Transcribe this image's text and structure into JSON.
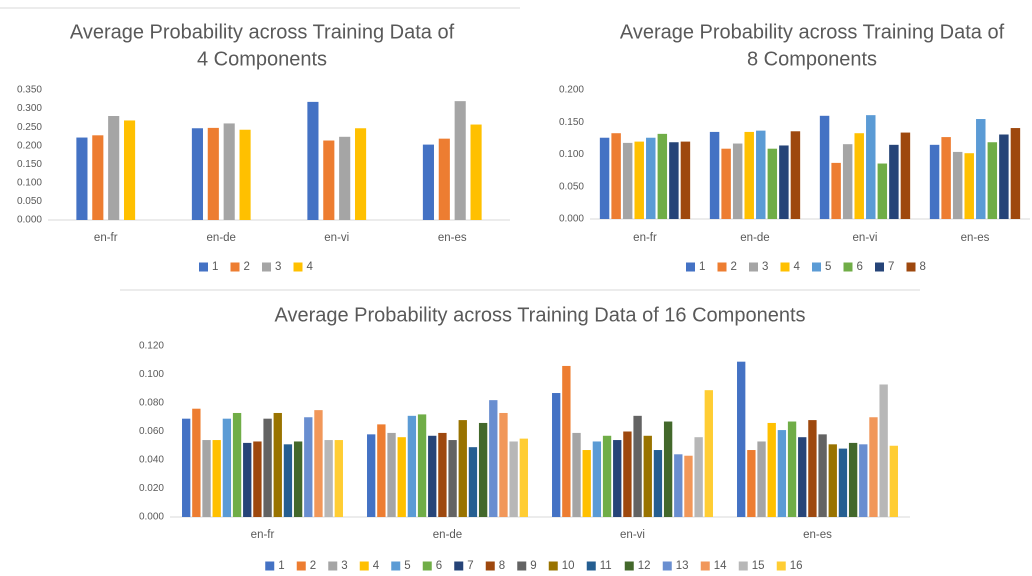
{
  "chart_data": [
    {
      "type": "bar",
      "title": [
        "Average Probability across Training Data of",
        "4 Components"
      ],
      "categories": [
        "en-fr",
        "en-de",
        "en-vi",
        "en-es"
      ],
      "ylim": [
        0,
        0.35
      ],
      "yticks": [
        {
          "value": 0,
          "label": "0.000"
        },
        {
          "value": 0.05,
          "label": "0.050"
        },
        {
          "value": 0.1,
          "label": "0.100"
        },
        {
          "value": 0.15,
          "label": "0.150"
        },
        {
          "value": 0.2,
          "label": "0.200"
        },
        {
          "value": 0.25,
          "label": "0.250"
        },
        {
          "value": 0.3,
          "label": "0.300"
        },
        {
          "value": 0.35,
          "label": "0.350"
        }
      ],
      "legend": "bottom",
      "series": [
        {
          "name": "1",
          "color": "#4472c4",
          "values": [
            0.222,
            0.247,
            0.318,
            0.203
          ]
        },
        {
          "name": "2",
          "color": "#ed7d31",
          "values": [
            0.228,
            0.248,
            0.214,
            0.219
          ]
        },
        {
          "name": "3",
          "color": "#a5a5a5",
          "values": [
            0.28,
            0.26,
            0.224,
            0.32
          ]
        },
        {
          "name": "4",
          "color": "#ffc000",
          "values": [
            0.268,
            0.243,
            0.247,
            0.257
          ]
        }
      ]
    },
    {
      "type": "bar",
      "title": [
        "Average Probability across Training Data of",
        "8 Components"
      ],
      "categories": [
        "en-fr",
        "en-de",
        "en-vi",
        "en-es"
      ],
      "ylim": [
        0,
        0.2
      ],
      "yticks": [
        {
          "value": 0,
          "label": "0.000"
        },
        {
          "value": 0.05,
          "label": "0.050"
        },
        {
          "value": 0.1,
          "label": "0.100"
        },
        {
          "value": 0.15,
          "label": "0.150"
        },
        {
          "value": 0.2,
          "label": "0.200"
        }
      ],
      "legend": "bottom",
      "series": [
        {
          "name": "1",
          "color": "#4472c4",
          "values": [
            0.126,
            0.135,
            0.16,
            0.115
          ]
        },
        {
          "name": "2",
          "color": "#ed7d31",
          "values": [
            0.133,
            0.109,
            0.087,
            0.127
          ]
        },
        {
          "name": "3",
          "color": "#a5a5a5",
          "values": [
            0.118,
            0.117,
            0.116,
            0.104
          ]
        },
        {
          "name": "4",
          "color": "#ffc000",
          "values": [
            0.12,
            0.135,
            0.133,
            0.102
          ]
        },
        {
          "name": "5",
          "color": "#5b9bd5",
          "values": [
            0.126,
            0.137,
            0.161,
            0.155
          ]
        },
        {
          "name": "6",
          "color": "#70ad47",
          "values": [
            0.132,
            0.109,
            0.086,
            0.119
          ]
        },
        {
          "name": "7",
          "color": "#264478",
          "values": [
            0.119,
            0.114,
            0.115,
            0.131
          ]
        },
        {
          "name": "8",
          "color": "#9e480e",
          "values": [
            0.12,
            0.136,
            0.134,
            0.141
          ]
        }
      ]
    },
    {
      "type": "bar",
      "title": [
        "Average Probability across Training Data of 16 Components"
      ],
      "categories": [
        "en-fr",
        "en-de",
        "en-vi",
        "en-es"
      ],
      "ylim": [
        0,
        0.12
      ],
      "yticks": [
        {
          "value": 0,
          "label": "0.000"
        },
        {
          "value": 0.02,
          "label": "0.020"
        },
        {
          "value": 0.04,
          "label": "0.040"
        },
        {
          "value": 0.06,
          "label": "0.060"
        },
        {
          "value": 0.08,
          "label": "0.080"
        },
        {
          "value": 0.1,
          "label": "0.100"
        },
        {
          "value": 0.12,
          "label": "0.120"
        }
      ],
      "legend": "bottom",
      "series": [
        {
          "name": "1",
          "color": "#4472c4",
          "values": [
            0.069,
            0.058,
            0.087,
            0.109
          ]
        },
        {
          "name": "2",
          "color": "#ed7d31",
          "values": [
            0.076,
            0.065,
            0.106,
            0.047
          ]
        },
        {
          "name": "3",
          "color": "#a5a5a5",
          "values": [
            0.054,
            0.059,
            0.059,
            0.053
          ]
        },
        {
          "name": "4",
          "color": "#ffc000",
          "values": [
            0.054,
            0.056,
            0.047,
            0.066
          ]
        },
        {
          "name": "5",
          "color": "#5b9bd5",
          "values": [
            0.069,
            0.071,
            0.053,
            0.061
          ]
        },
        {
          "name": "6",
          "color": "#70ad47",
          "values": [
            0.073,
            0.072,
            0.057,
            0.067
          ]
        },
        {
          "name": "7",
          "color": "#264478",
          "values": [
            0.052,
            0.057,
            0.054,
            0.056
          ]
        },
        {
          "name": "8",
          "color": "#9e480e",
          "values": [
            0.053,
            0.059,
            0.06,
            0.068
          ]
        },
        {
          "name": "9",
          "color": "#636363",
          "values": [
            0.069,
            0.054,
            0.071,
            0.058
          ]
        },
        {
          "name": "10",
          "color": "#997300",
          "values": [
            0.073,
            0.068,
            0.057,
            0.051
          ]
        },
        {
          "name": "11",
          "color": "#255e91",
          "values": [
            0.051,
            0.049,
            0.047,
            0.048
          ]
        },
        {
          "name": "12",
          "color": "#43682b",
          "values": [
            0.053,
            0.066,
            0.067,
            0.052
          ]
        },
        {
          "name": "13",
          "color": "#698ed0",
          "values": [
            0.07,
            0.082,
            0.044,
            0.051
          ]
        },
        {
          "name": "14",
          "color": "#f1975a",
          "values": [
            0.075,
            0.073,
            0.043,
            0.07
          ]
        },
        {
          "name": "15",
          "color": "#b7b7b7",
          "values": [
            0.054,
            0.053,
            0.056,
            0.093
          ]
        },
        {
          "name": "16",
          "color": "#ffcd33",
          "values": [
            0.054,
            0.055,
            0.089,
            0.05
          ]
        }
      ]
    }
  ]
}
